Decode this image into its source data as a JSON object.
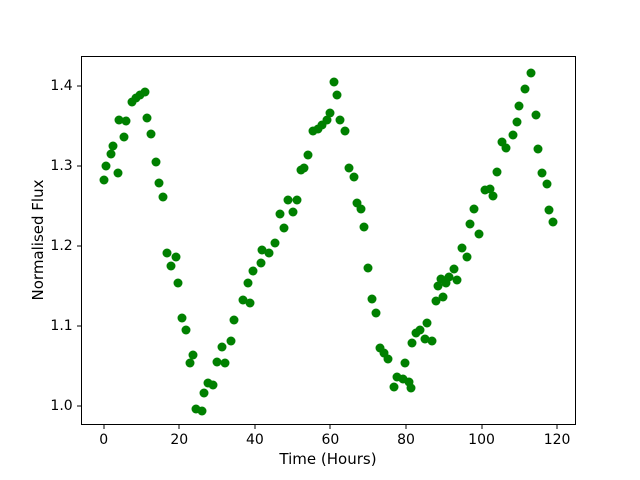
{
  "figure": {
    "background": "#ffffff"
  },
  "chart_data": {
    "type": "scatter",
    "title": "",
    "xlabel": "Time (Hours)",
    "ylabel": "Normalised Flux",
    "marker_color": "#008000",
    "marker_shape": "circle",
    "grid": false,
    "legend_position": "none",
    "xlim": [
      -6.1,
      125.0
    ],
    "ylim": [
      0.976,
      1.437
    ],
    "xticks": [
      0,
      20,
      40,
      60,
      80,
      100,
      120
    ],
    "yticks": [
      1.0,
      1.1,
      1.2,
      1.3,
      1.4
    ],
    "points": [
      [
        0.0,
        1.282
      ],
      [
        0.5,
        1.3
      ],
      [
        1.8,
        1.314
      ],
      [
        2.4,
        1.324
      ],
      [
        3.9,
        1.291
      ],
      [
        4.0,
        1.357
      ],
      [
        5.4,
        1.336
      ],
      [
        5.9,
        1.356
      ],
      [
        7.5,
        1.379
      ],
      [
        8.6,
        1.384
      ],
      [
        9.7,
        1.388
      ],
      [
        10.8,
        1.392
      ],
      [
        11.4,
        1.36
      ],
      [
        12.4,
        1.34
      ],
      [
        13.9,
        1.304
      ],
      [
        14.7,
        1.278
      ],
      [
        15.6,
        1.261
      ],
      [
        16.7,
        1.191
      ],
      [
        17.9,
        1.175
      ],
      [
        19.0,
        1.186
      ],
      [
        19.7,
        1.154
      ],
      [
        20.6,
        1.11
      ],
      [
        21.7,
        1.095
      ],
      [
        22.9,
        1.053
      ],
      [
        23.6,
        1.064
      ],
      [
        24.5,
        0.996
      ],
      [
        25.9,
        0.994
      ],
      [
        26.6,
        1.016
      ],
      [
        27.5,
        1.028
      ],
      [
        28.9,
        1.026
      ],
      [
        30.0,
        1.055
      ],
      [
        31.3,
        1.074
      ],
      [
        32.1,
        1.054
      ],
      [
        33.6,
        1.081
      ],
      [
        34.6,
        1.107
      ],
      [
        36.9,
        1.132
      ],
      [
        38.1,
        1.154
      ],
      [
        38.8,
        1.129
      ],
      [
        39.6,
        1.169
      ],
      [
        41.6,
        1.179
      ],
      [
        42.0,
        1.195
      ],
      [
        43.8,
        1.191
      ],
      [
        45.3,
        1.204
      ],
      [
        46.7,
        1.24
      ],
      [
        47.8,
        1.222
      ],
      [
        48.7,
        1.257
      ],
      [
        50.0,
        1.242
      ],
      [
        51.1,
        1.257
      ],
      [
        52.3,
        1.295
      ],
      [
        53.1,
        1.297
      ],
      [
        54.0,
        1.313
      ],
      [
        55.3,
        1.343
      ],
      [
        56.7,
        1.346
      ],
      [
        57.9,
        1.351
      ],
      [
        59.2,
        1.357
      ],
      [
        59.9,
        1.366
      ],
      [
        61.0,
        1.405
      ],
      [
        61.8,
        1.388
      ],
      [
        62.5,
        1.357
      ],
      [
        63.8,
        1.343
      ],
      [
        64.8,
        1.297
      ],
      [
        66.3,
        1.286
      ],
      [
        67.0,
        1.253
      ],
      [
        68.1,
        1.246
      ],
      [
        69.0,
        1.223
      ],
      [
        70.0,
        1.172
      ],
      [
        71.1,
        1.134
      ],
      [
        72.0,
        1.116
      ],
      [
        73.1,
        1.072
      ],
      [
        74.3,
        1.066
      ],
      [
        75.3,
        1.059
      ],
      [
        76.7,
        1.024
      ],
      [
        77.6,
        1.036
      ],
      [
        79.1,
        1.033
      ],
      [
        79.7,
        1.053
      ],
      [
        80.7,
        1.03
      ],
      [
        81.3,
        1.022
      ],
      [
        81.7,
        1.078
      ],
      [
        82.6,
        1.091
      ],
      [
        83.7,
        1.095
      ],
      [
        85.0,
        1.083
      ],
      [
        85.5,
        1.103
      ],
      [
        87.0,
        1.081
      ],
      [
        87.9,
        1.131
      ],
      [
        88.5,
        1.15
      ],
      [
        89.2,
        1.158
      ],
      [
        89.9,
        1.136
      ],
      [
        90.5,
        1.154
      ],
      [
        91.4,
        1.161
      ],
      [
        92.8,
        1.171
      ],
      [
        93.4,
        1.157
      ],
      [
        94.9,
        1.197
      ],
      [
        96.1,
        1.186
      ],
      [
        97.0,
        1.227
      ],
      [
        98.0,
        1.246
      ],
      [
        99.4,
        1.215
      ],
      [
        100.8,
        1.269
      ],
      [
        102.3,
        1.271
      ],
      [
        102.9,
        1.262
      ],
      [
        104.0,
        1.292
      ],
      [
        105.3,
        1.329
      ],
      [
        106.6,
        1.322
      ],
      [
        108.2,
        1.338
      ],
      [
        109.3,
        1.355
      ],
      [
        110.0,
        1.374
      ],
      [
        111.5,
        1.396
      ],
      [
        113.1,
        1.416
      ],
      [
        114.4,
        1.363
      ],
      [
        114.9,
        1.321
      ],
      [
        116.0,
        1.291
      ],
      [
        117.2,
        1.277
      ],
      [
        117.8,
        1.244
      ],
      [
        119.0,
        1.229
      ]
    ]
  }
}
